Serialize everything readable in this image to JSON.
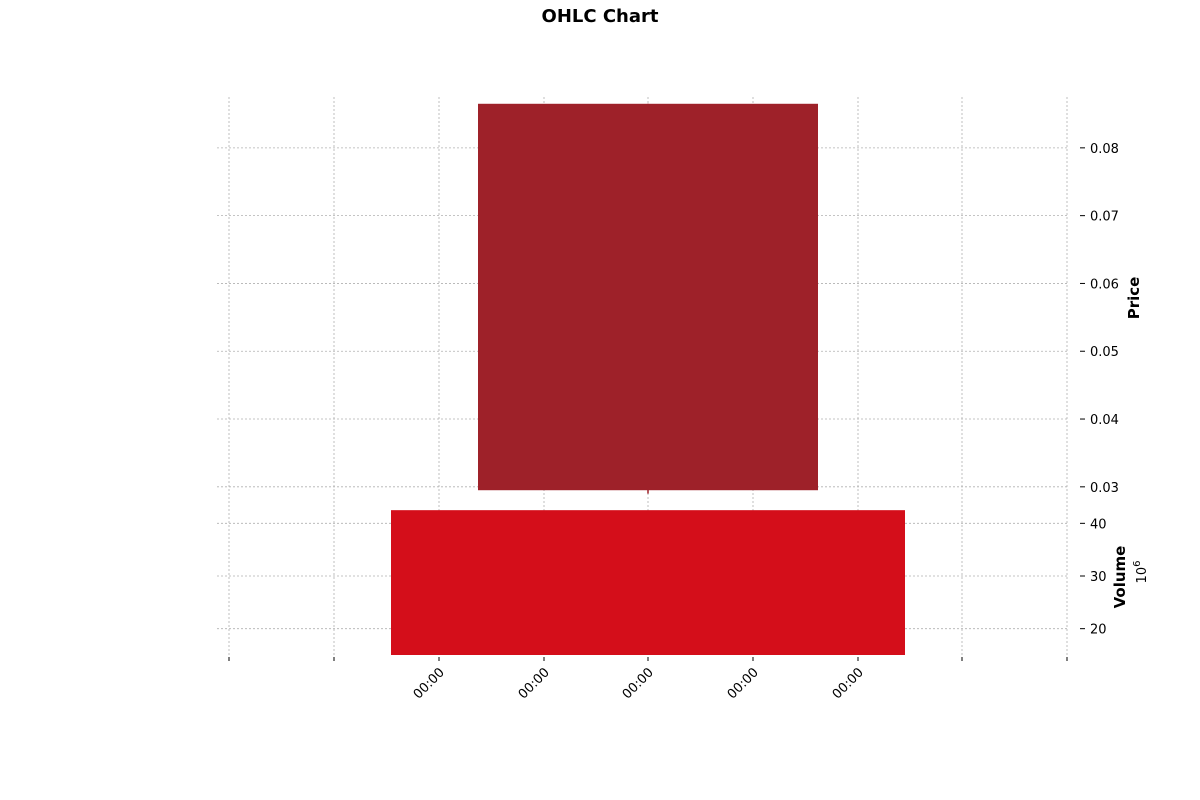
{
  "chart_data": {
    "type": "candlestick",
    "title": "OHLC Chart",
    "x_tick_labels": [
      "00:00",
      "00:00",
      "00:00",
      "00:00",
      "00:00"
    ],
    "price_panel": {
      "ylabel": "Price",
      "ylim": [
        0.0285,
        0.0875
      ],
      "yticks": [
        0.03,
        0.04,
        0.05,
        0.06,
        0.07,
        0.08
      ],
      "ytick_labels": [
        "0.03",
        "0.04",
        "0.05",
        "0.06",
        "0.07",
        "0.08"
      ],
      "candles": [
        {
          "open": 0.0865,
          "high": 0.0865,
          "low": 0.029,
          "close": 0.0295,
          "color": "#9e2129"
        }
      ]
    },
    "volume_panel": {
      "ylabel": "Volume",
      "scale_label": "10",
      "scale_exponent": "6",
      "ylim": [
        15,
        45
      ],
      "yticks": [
        20,
        30,
        40
      ],
      "ytick_labels": [
        "20",
        "30",
        "40"
      ],
      "bars": [
        {
          "value": 42.5,
          "color": "#d40e1a"
        }
      ]
    },
    "grid": true
  }
}
